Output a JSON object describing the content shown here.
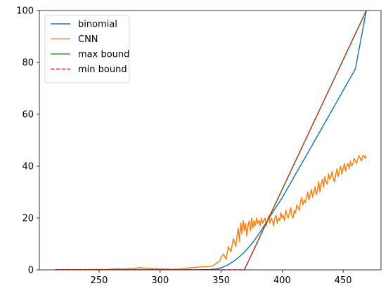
{
  "chart_data": {
    "type": "line",
    "title": "",
    "xlabel": "",
    "ylabel": "",
    "xlim": [
      201,
      481
    ],
    "ylim": [
      0,
      100
    ],
    "xticks": [
      250,
      300,
      350,
      400,
      450
    ],
    "yticks": [
      0,
      20,
      40,
      60,
      80,
      100
    ],
    "grid": false,
    "legend": {
      "position": "top-left"
    },
    "series": [
      {
        "name": "binomial",
        "color": "#1f77b4",
        "style": "solid",
        "x": [
          214,
          300,
          330,
          340,
          345,
          350,
          355,
          360,
          365,
          370,
          375,
          380,
          385,
          388,
          390,
          400,
          420,
          440,
          460,
          469
        ],
        "y": [
          0,
          0,
          0,
          0.1,
          0.3,
          0.8,
          1.8,
          3.2,
          5.1,
          7.3,
          10.0,
          13.2,
          16.8,
          19.0,
          20.5,
          27.8,
          44.3,
          60.8,
          77.5,
          100
        ]
      },
      {
        "name": "CNN",
        "color": "#ff7f0e",
        "style": "solid",
        "x": [
          214,
          220,
          230,
          240,
          250,
          255,
          260,
          265,
          270,
          275,
          280,
          283,
          286,
          290,
          295,
          300,
          305,
          310,
          315,
          320,
          325,
          330,
          335,
          340,
          343,
          346,
          349,
          350,
          352,
          354,
          356,
          358,
          360,
          362,
          363,
          364,
          365,
          366,
          367,
          368,
          369,
          370,
          371,
          372,
          373,
          374,
          375,
          376,
          377,
          378,
          379,
          380,
          381,
          382,
          383,
          384,
          385,
          386,
          387,
          388,
          389,
          390,
          391,
          392,
          393,
          394,
          395,
          396,
          397,
          398,
          399,
          400,
          401,
          402,
          403,
          404,
          405,
          406,
          407,
          408,
          409,
          410,
          411,
          412,
          413,
          414,
          415,
          416,
          417,
          418,
          419,
          420,
          421,
          422,
          423,
          424,
          425,
          426,
          427,
          428,
          429,
          430,
          431,
          432,
          433,
          434,
          435,
          436,
          437,
          438,
          439,
          440,
          441,
          442,
          443,
          444,
          445,
          446,
          447,
          448,
          449,
          450,
          451,
          452,
          453,
          454,
          455,
          456,
          457,
          458,
          459,
          460,
          461,
          462,
          463,
          464,
          465,
          466,
          467,
          468,
          469
        ],
        "y": [
          0,
          0,
          0.05,
          0.1,
          0.2,
          0.1,
          0.3,
          0.4,
          0.3,
          0.5,
          0.6,
          0.9,
          0.7,
          0.6,
          0.5,
          0.4,
          0.3,
          0.2,
          0.3,
          0.5,
          0.8,
          1.0,
          1.2,
          1.3,
          1.5,
          2.5,
          3.5,
          5,
          6,
          4,
          9,
          7,
          12,
          9,
          13,
          16,
          11,
          18,
          14,
          19,
          15,
          18,
          13,
          17,
          19,
          15,
          20,
          16,
          19,
          17,
          20,
          18,
          19,
          17,
          20,
          18,
          19,
          20,
          17,
          19,
          21,
          18,
          20,
          19,
          17,
          20,
          21,
          18,
          20,
          19,
          22,
          20,
          21,
          19,
          23,
          21,
          20,
          22,
          24,
          21,
          20,
          23,
          22,
          25,
          24,
          23,
          26,
          28,
          25,
          27,
          26,
          28,
          30,
          27,
          29,
          31,
          28,
          30,
          32,
          29,
          31,
          34,
          30,
          33,
          35,
          32,
          36,
          34,
          33,
          37,
          35,
          36,
          38,
          35,
          34,
          37,
          39,
          36,
          38,
          40,
          37,
          39,
          41,
          38,
          40,
          41,
          39,
          42,
          40,
          41,
          43,
          42,
          41,
          43,
          44,
          43,
          42,
          44,
          44,
          43,
          44
        ]
      },
      {
        "name": "max bound",
        "color": "#2ca02c",
        "style": "solid",
        "x": [
          369,
          469
        ],
        "y": [
          0,
          100
        ]
      },
      {
        "name": "min bound",
        "color": "#d62728",
        "style": "dashed",
        "x": [
          214,
          369,
          469
        ],
        "y": [
          0,
          0,
          100
        ]
      }
    ]
  }
}
